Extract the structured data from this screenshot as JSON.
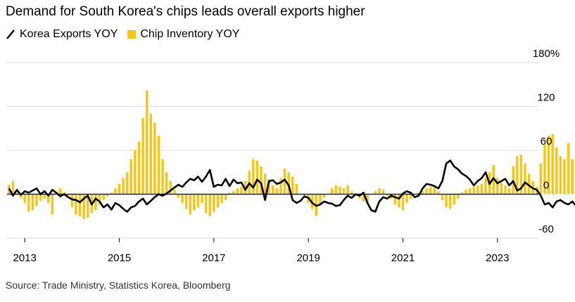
{
  "title": "Demand for South Korea's chips leads overall exports higher",
  "legend": {
    "line_label": "Korea Exports YOY",
    "bar_label": "Chip Inventory YOY"
  },
  "source": "Source: Trade Ministry, Statistics Korea, Bloomberg",
  "colors": {
    "line": "#000000",
    "bar": "#f5c518",
    "grid": "#d9d9d9",
    "axis": "#000000"
  },
  "chart_data": {
    "type": "bar+line",
    "x_start": "2012-09",
    "x_end": "2023-05",
    "x_ticks": [
      "2013",
      "2015",
      "2017",
      "2019",
      "2021",
      "2023"
    ],
    "y_ticks": [
      "180%",
      "120",
      "60",
      "0",
      "-60"
    ],
    "y_tick_values": [
      180,
      120,
      60,
      0,
      -60
    ],
    "ylim": [
      -60,
      180
    ],
    "grid": true,
    "series": [
      {
        "name": "Chip Inventory YOY",
        "type": "bar",
        "values": [
          13,
          18,
          2,
          -5,
          -12,
          -24,
          -22,
          -16,
          -9,
          -6,
          -12,
          -28,
          2,
          8,
          3,
          -3,
          -18,
          -28,
          -30,
          -34,
          -32,
          -26,
          -22,
          -14,
          -8,
          -3,
          2,
          8,
          14,
          22,
          30,
          48,
          60,
          72,
          104,
          142,
          110,
          98,
          80,
          48,
          30,
          18,
          6,
          -5,
          -12,
          -20,
          -28,
          -22,
          -18,
          -12,
          -26,
          -30,
          -24,
          -18,
          -12,
          -8,
          2,
          4,
          8,
          10,
          18,
          32,
          48,
          46,
          38,
          28,
          20,
          12,
          8,
          22,
          35,
          30,
          24,
          14,
          0,
          -4,
          -12,
          -20,
          -30,
          -15,
          -5,
          0,
          8,
          12,
          10,
          8,
          12,
          4,
          -2,
          -6,
          -10,
          -12,
          0,
          4,
          8,
          6,
          -2,
          -6,
          -14,
          -18,
          -22,
          -12,
          -6,
          0,
          2,
          4,
          8,
          10,
          12,
          4,
          -8,
          -18,
          -20,
          -14,
          -6,
          2,
          6,
          8,
          10,
          12,
          14,
          22,
          30,
          40,
          22,
          16,
          12,
          8,
          38,
          52,
          54,
          42,
          28,
          18,
          10,
          42,
          68,
          80,
          82,
          64,
          52,
          48,
          70,
          48,
          36,
          30,
          14,
          -6,
          -14,
          -18,
          -26,
          -32
        ]
      },
      {
        "name": "Korea Exports YOY",
        "type": "line",
        "values": [
          8,
          -2,
          6,
          -1,
          4,
          2,
          5,
          8,
          0,
          4,
          -2,
          6,
          2,
          -3,
          0,
          -4,
          -7,
          -8,
          -11,
          -6,
          -2,
          -14,
          -6,
          -10,
          -18,
          -14,
          -21,
          -12,
          -15,
          -20,
          -24,
          -18,
          -16,
          -10,
          -6,
          -14,
          -9,
          -4,
          0,
          -2,
          1,
          5,
          9,
          13,
          10,
          16,
          21,
          19,
          24,
          17,
          24,
          33,
          10,
          13,
          12,
          21,
          11,
          20,
          15,
          16,
          6,
          15,
          9,
          20,
          15,
          -8,
          18,
          19,
          14,
          16,
          20,
          12,
          -8,
          -12,
          -9,
          -3,
          -5,
          -12,
          -16,
          -14,
          -10,
          -12,
          -13,
          -16,
          -15,
          -8,
          -2,
          -5,
          0,
          -2,
          2,
          -12,
          -22,
          -24,
          -10,
          -4,
          -6,
          -2,
          -4,
          -6,
          1,
          4,
          2,
          -4,
          -2,
          8,
          14,
          13,
          11,
          8,
          18,
          42,
          46,
          38,
          34,
          28,
          25,
          20,
          12,
          18,
          22,
          30,
          14,
          22,
          15,
          18,
          21,
          12,
          18,
          5,
          8,
          16,
          12,
          8,
          6,
          -2,
          -14,
          -12,
          -18,
          -10,
          -8,
          -12,
          -14,
          -10,
          -16,
          -14,
          -8,
          -16,
          -12,
          -8,
          0,
          5,
          7,
          8,
          4,
          17,
          10,
          3,
          4,
          12
        ]
      }
    ]
  }
}
